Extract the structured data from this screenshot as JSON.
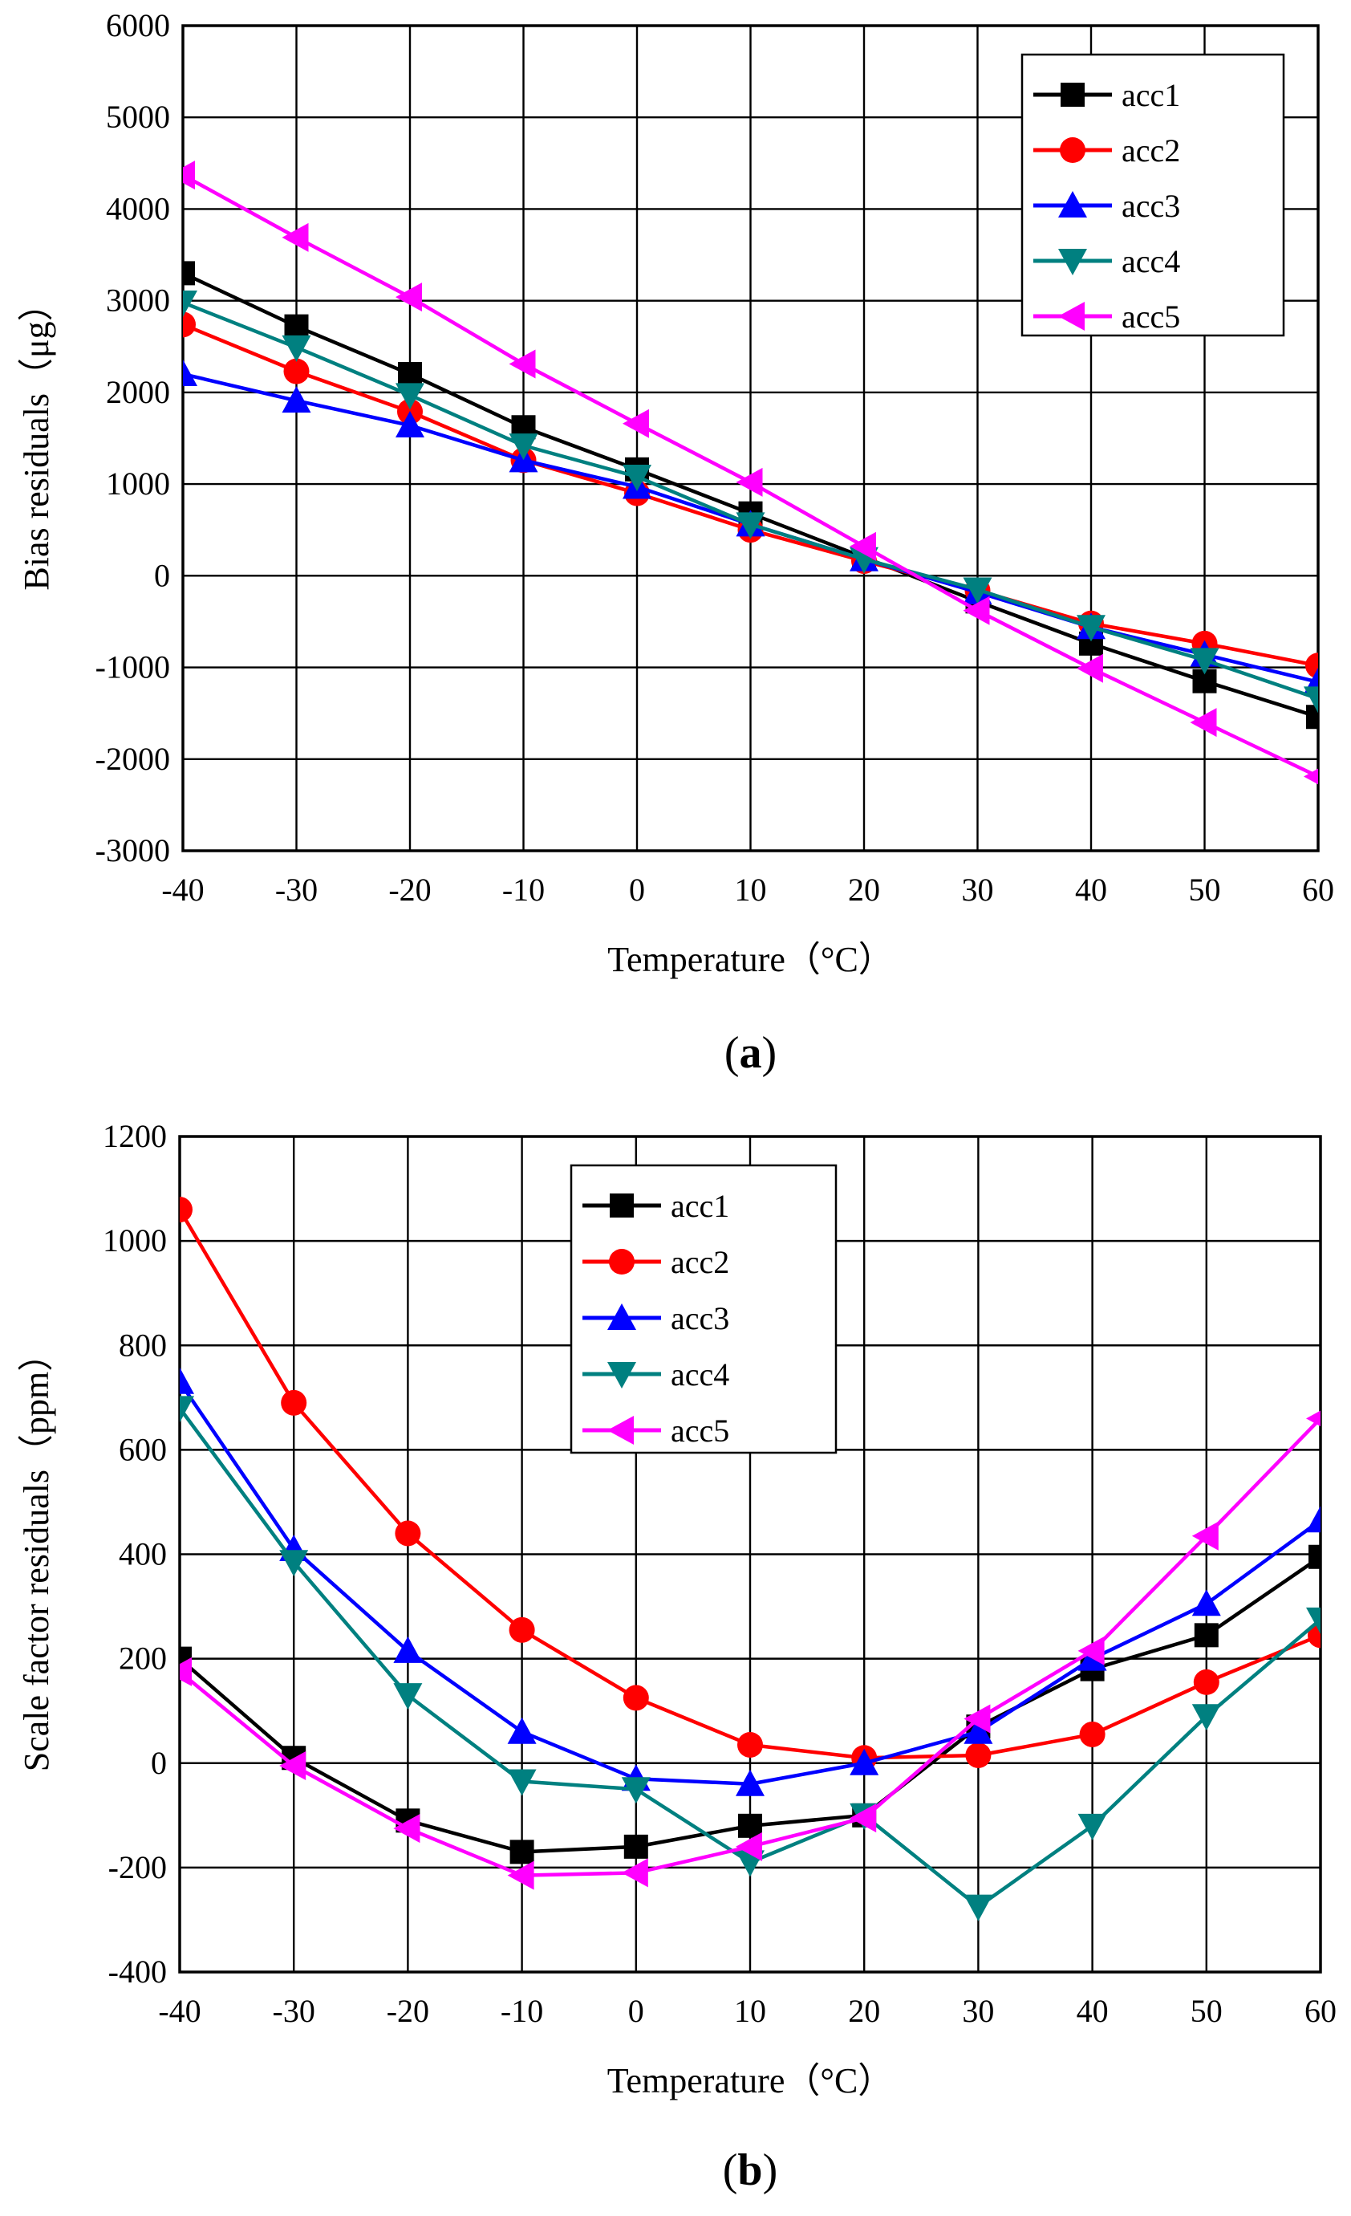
{
  "chart_data": [
    {
      "type": "line",
      "panel_label": "a",
      "title": "",
      "xlabel": "Temperature（°C）",
      "ylabel": "Bias residuals（μg）",
      "x": [
        -40,
        -30,
        -20,
        -10,
        0,
        10,
        20,
        30,
        40,
        50,
        60
      ],
      "xlim": [
        -40,
        60
      ],
      "ylim": [
        -3000,
        6000
      ],
      "xticks": [
        -40,
        -30,
        -20,
        -10,
        0,
        10,
        20,
        30,
        40,
        50,
        60
      ],
      "yticks": [
        -3000,
        -2000,
        -1000,
        0,
        1000,
        2000,
        3000,
        4000,
        5000,
        6000
      ],
      "grid": true,
      "legend": "top-right",
      "series": [
        {
          "name": "acc1",
          "color": "#000000",
          "marker": "square",
          "values": [
            3300,
            2720,
            2200,
            1620,
            1160,
            680,
            200,
            -280,
            -740,
            -1150,
            -1540
          ]
        },
        {
          "name": "acc2",
          "color": "#ff0000",
          "marker": "circle",
          "values": [
            2740,
            2230,
            1790,
            1260,
            900,
            500,
            160,
            -160,
            -520,
            -740,
            -980
          ]
        },
        {
          "name": "acc3",
          "color": "#0000ff",
          "marker": "triangle-up",
          "values": [
            2200,
            1910,
            1640,
            1260,
            970,
            560,
            180,
            -180,
            -560,
            -860,
            -1160
          ]
        },
        {
          "name": "acc4",
          "color": "#008080",
          "marker": "triangle-down",
          "values": [
            2980,
            2490,
            1970,
            1420,
            1080,
            560,
            180,
            -150,
            -560,
            -920,
            -1340
          ]
        },
        {
          "name": "acc5",
          "color": "#ff00ff",
          "marker": "triangle-left",
          "values": [
            4370,
            3690,
            3040,
            2310,
            1660,
            1020,
            320,
            -380,
            -1010,
            -1600,
            -2190
          ]
        }
      ]
    },
    {
      "type": "line",
      "panel_label": "b",
      "title": "",
      "xlabel": "Temperature（°C）",
      "ylabel": "Scale factor residuals（ppm）",
      "x": [
        -40,
        -30,
        -20,
        -10,
        0,
        10,
        20,
        30,
        40,
        50,
        60
      ],
      "xlim": [
        -40,
        60
      ],
      "ylim": [
        -400,
        1200
      ],
      "xticks": [
        -40,
        -30,
        -20,
        -10,
        0,
        10,
        20,
        30,
        40,
        50,
        60
      ],
      "yticks": [
        -400,
        -200,
        0,
        200,
        400,
        600,
        800,
        1000,
        1200
      ],
      "grid": true,
      "legend": "top-center",
      "series": [
        {
          "name": "acc1",
          "color": "#000000",
          "marker": "square",
          "values": [
            200,
            10,
            -110,
            -170,
            -160,
            -120,
            -100,
            70,
            180,
            245,
            395
          ]
        },
        {
          "name": "acc2",
          "color": "#ff0000",
          "marker": "circle",
          "values": [
            1060,
            690,
            440,
            255,
            125,
            35,
            10,
            15,
            55,
            155,
            245
          ]
        },
        {
          "name": "acc3",
          "color": "#0000ff",
          "marker": "triangle-up",
          "values": [
            730,
            410,
            215,
            60,
            -30,
            -40,
            0,
            60,
            200,
            305,
            465
          ]
        },
        {
          "name": "acc4",
          "color": "#008080",
          "marker": "triangle-down",
          "values": [
            680,
            385,
            130,
            -35,
            -50,
            -190,
            -100,
            -275,
            -120,
            90,
            275
          ]
        },
        {
          "name": "acc5",
          "color": "#ff00ff",
          "marker": "triangle-left",
          "values": [
            175,
            -5,
            -125,
            -215,
            -210,
            -160,
            -105,
            85,
            215,
            435,
            660
          ]
        }
      ]
    }
  ]
}
